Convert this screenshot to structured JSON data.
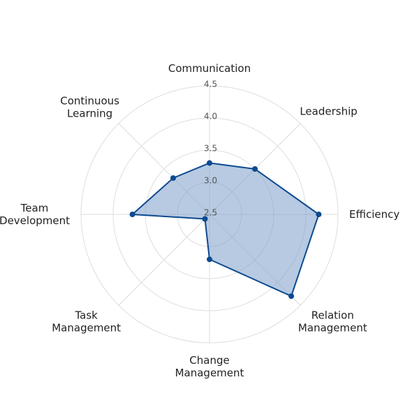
{
  "chart_data": {
    "type": "radar",
    "categories": [
      "Communication",
      "Leadership",
      "Efficiency",
      "Relation\nManagement",
      "Change\nManagement",
      "Task\nManagement",
      "Team\nDevelopment",
      "Continuous\nLearning"
    ],
    "values": [
      3.3,
      3.5,
      4.2,
      4.3,
      3.2,
      2.6,
      3.7,
      3.3
    ],
    "color": "#0d4a8f",
    "fill": "#7b9fcb",
    "rlim": [
      2.5,
      4.5
    ],
    "rticks": [
      2.5,
      3.0,
      3.5,
      4.0,
      4.5
    ],
    "grid": true
  }
}
